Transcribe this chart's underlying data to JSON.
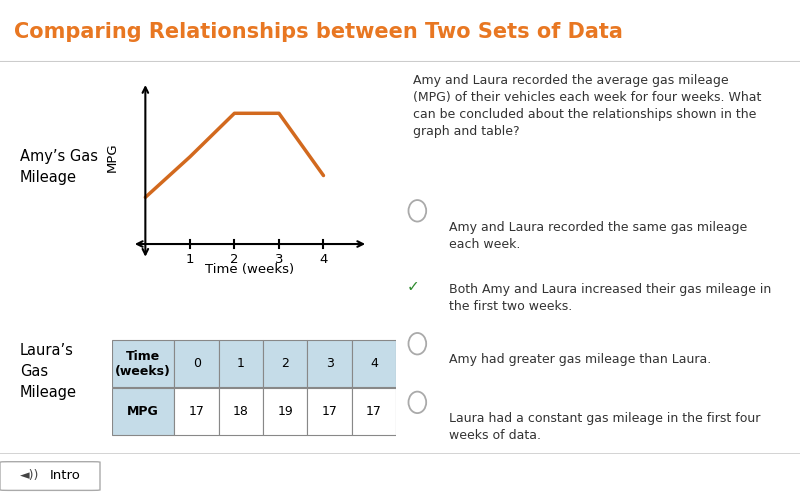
{
  "title": "Comparing Relationships between Two Sets of Data",
  "title_color": "#E87722",
  "title_bg_color": "#F0F0F0",
  "main_bg_color": "#FFFFFF",
  "graph_line_color": "#D2691E",
  "graph_line_x": [
    0,
    1,
    2,
    3,
    4
  ],
  "graph_line_y": [
    1.5,
    2.8,
    4.2,
    4.2,
    2.2
  ],
  "graph_xlabel": "Time (weeks)",
  "graph_ylabel": "MPG",
  "graph_xticks": [
    1,
    2,
    3,
    4
  ],
  "amy_label": "Amy’s Gas\nMileage",
  "laura_label": "Laura’s\nGas\nMileage",
  "table_header": [
    "Time\n(weeks)",
    "0",
    "1",
    "2",
    "3",
    "4"
  ],
  "table_row_label": "MPG",
  "table_values": [
    "17",
    "18",
    "19",
    "17",
    "17"
  ],
  "table_header_bg": "#C5DCE8",
  "table_row_bg": "#C5DCE8",
  "question_text": "Amy and Laura recorded the average gas mileage\n(MPG) of their vehicles each week for four weeks. What\ncan be concluded about the relationships shown in the\ngraph and table?",
  "options": [
    {
      "text": "Amy and Laura recorded the same gas mileage\neach week.",
      "checked": false
    },
    {
      "text": "Both Amy and Laura increased their gas mileage in\nthe first two weeks.",
      "checked": true
    },
    {
      "text": "Amy had greater gas mileage than Laura.",
      "checked": false
    },
    {
      "text": "Laura had a constant gas mileage in the first four\nweeks of data.",
      "checked": false
    }
  ],
  "checkmark_color": "#2E8B2E",
  "option_text_color": "#333333",
  "radio_color": "#AAAAAA",
  "footer_bg": "#E0E0E0",
  "footer_text": "Intro",
  "border_color": "#CCCCCC"
}
